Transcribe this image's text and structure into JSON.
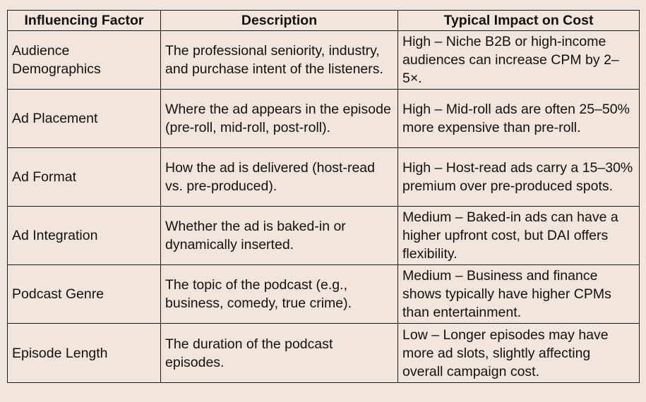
{
  "headers": {
    "factor": "Influencing Factor",
    "description": "Description",
    "impact": "Typical Impact on Cost"
  },
  "rows": [
    {
      "factor": "Audience Demographics",
      "description": "The professional seniority, industry, and purchase intent of the listeners.",
      "impact": "High – Niche B2B or high-income audiences can increase CPM by 2–5×."
    },
    {
      "factor": "Ad Placement",
      "description": "Where the ad appears in the episode (pre-roll, mid-roll, post-roll).",
      "impact": "High – Mid-roll ads are often 25–50% more expensive than pre-roll."
    },
    {
      "factor": "Ad Format",
      "description": "How the ad is delivered (host-read vs. pre-produced).",
      "impact": "High – Host-read ads carry a 15–30% premium over pre-produced spots."
    },
    {
      "factor": "Ad Integration",
      "description": "Whether the ad is baked-in or dynamically inserted.",
      "impact": "Medium – Baked-in ads can have a higher upfront cost, but DAI offers flexibility."
    },
    {
      "factor": "Podcast Genre",
      "description": "The topic of the podcast (e.g., business, comedy, true crime).",
      "impact": "Medium – Business and finance shows typically have higher CPMs than entertainment."
    },
    {
      "factor": "Episode Length",
      "description": "The duration of the podcast episodes.",
      "impact": "Low – Longer episodes may have more ad slots, slightly affecting overall campaign cost."
    }
  ]
}
